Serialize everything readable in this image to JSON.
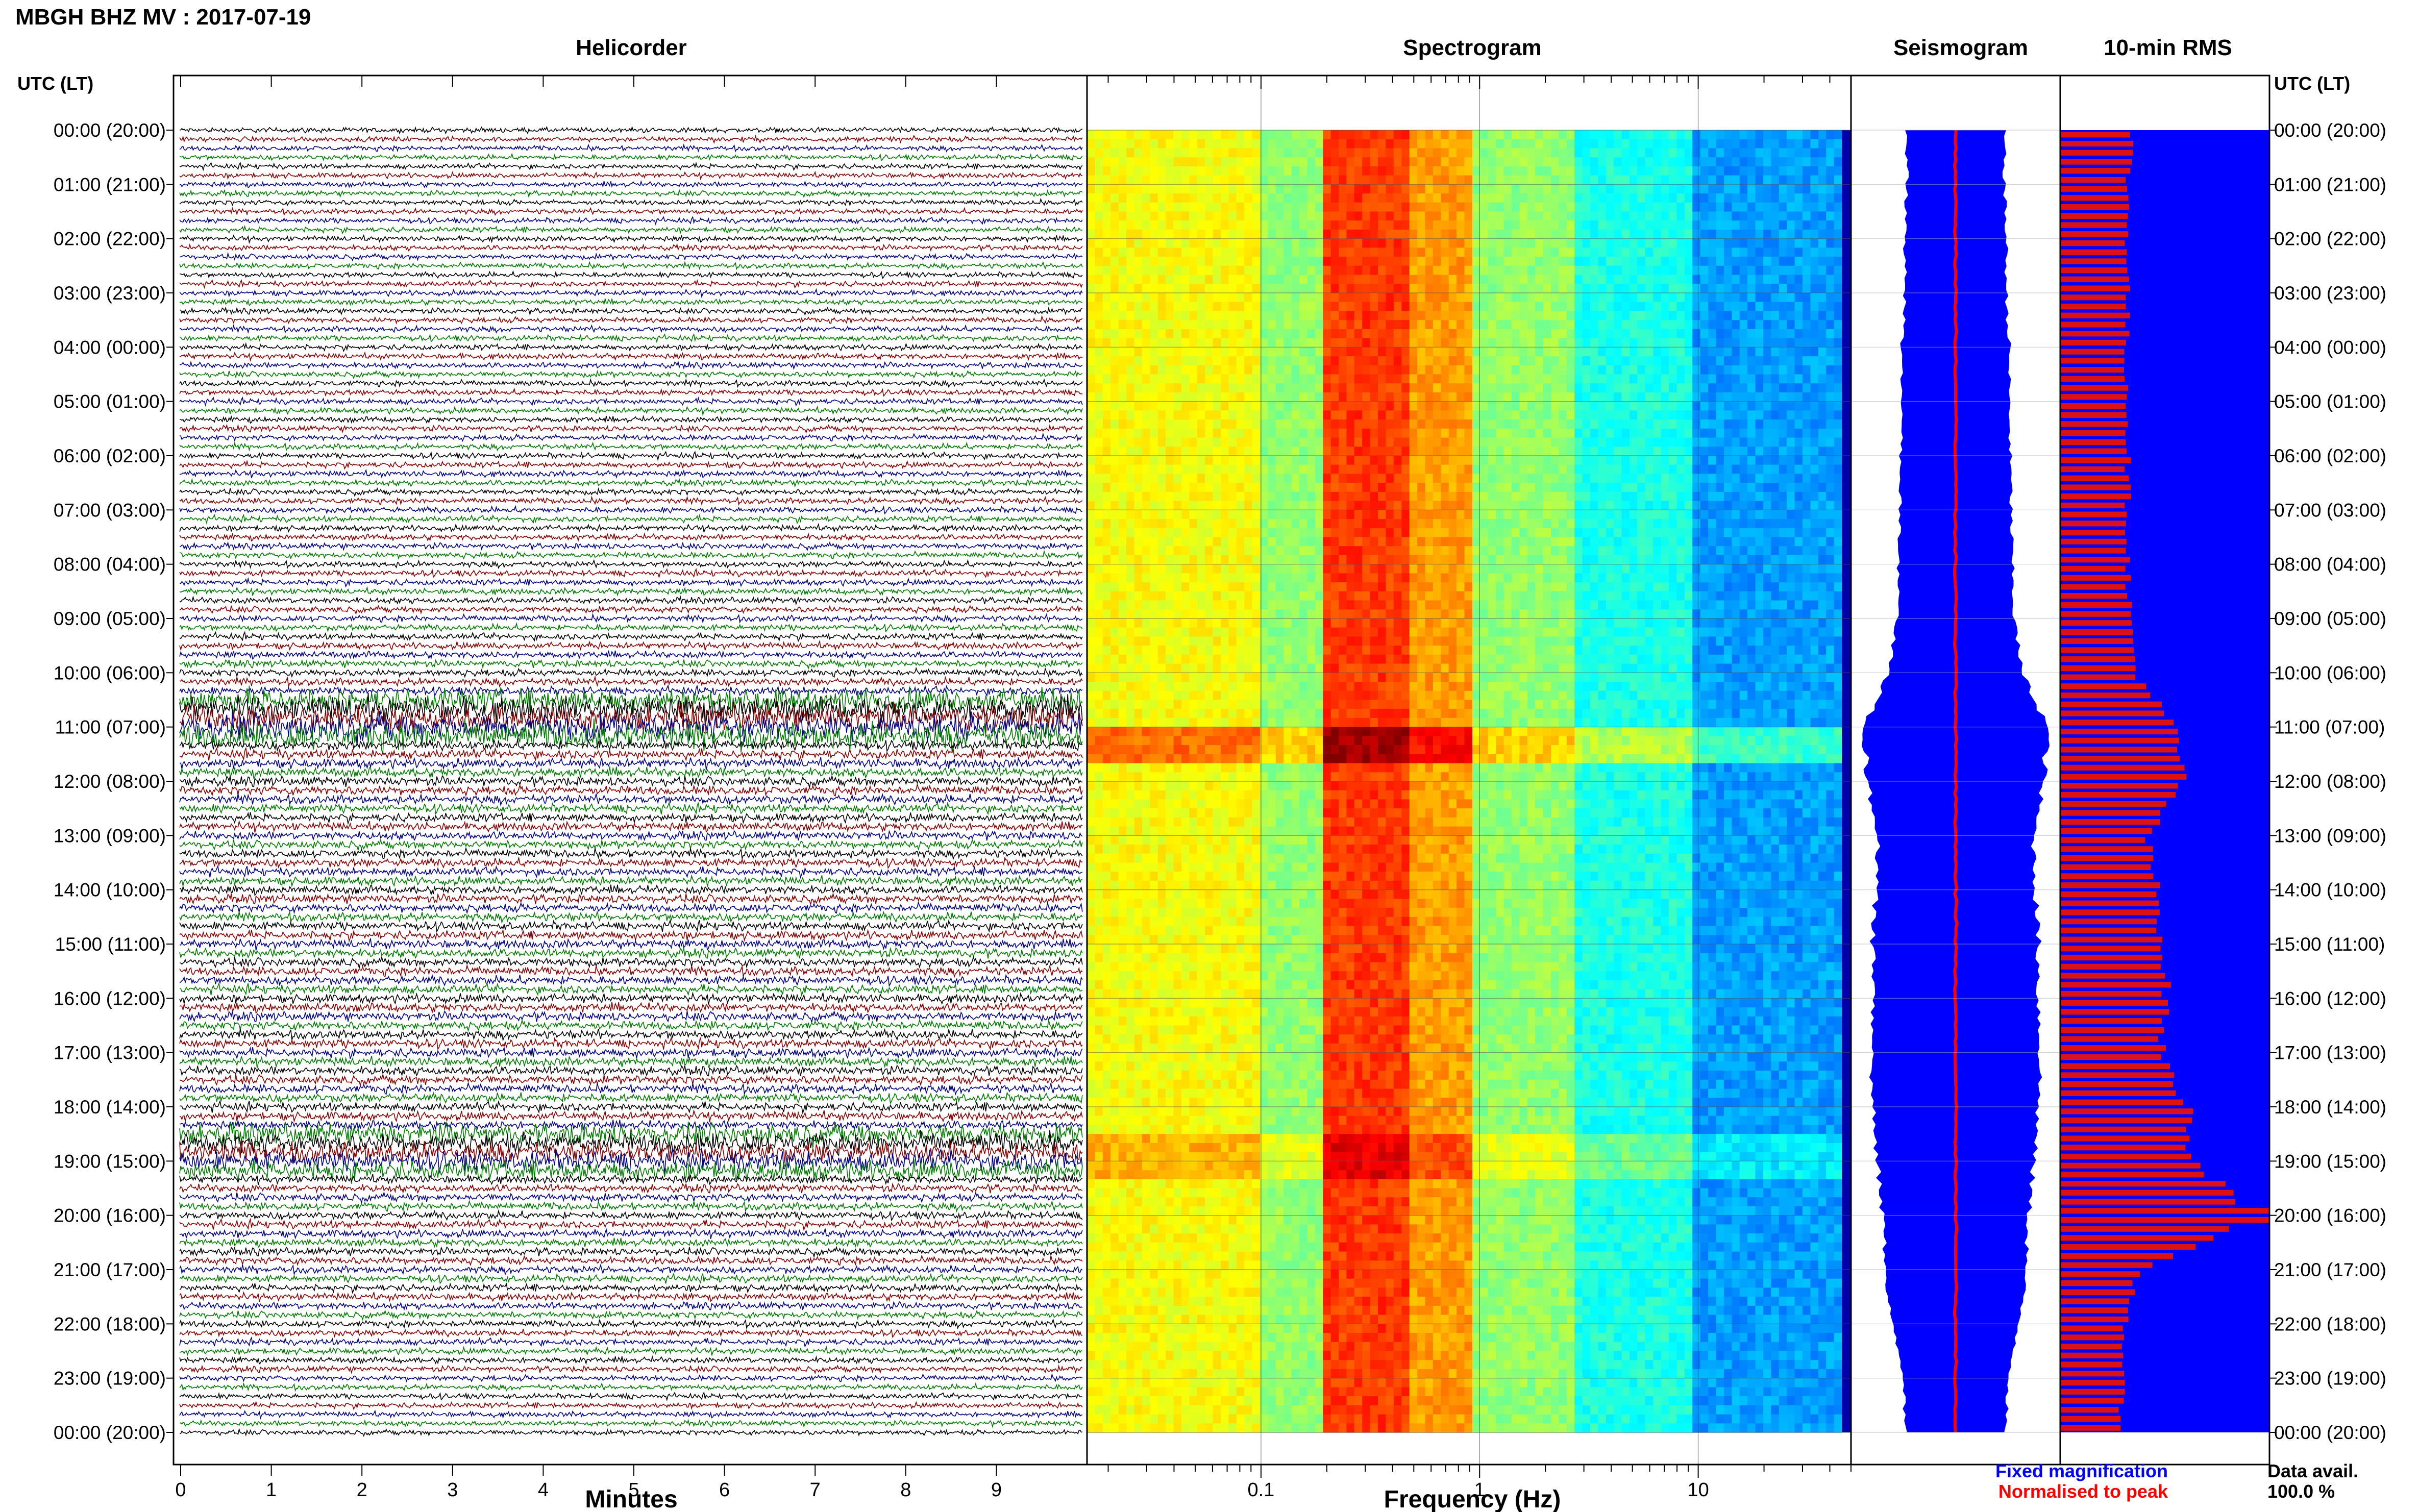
{
  "header": {
    "title": "MBGH BHZ MV : 2017-07-19",
    "utc_label_left": "UTC (LT)",
    "utc_label_right": "UTC (LT)"
  },
  "panels": {
    "helicorder": {
      "title": "Helicorder",
      "xlabel": "Minutes"
    },
    "spectrogram": {
      "title": "Spectrogram",
      "xlabel": "Frequency (Hz)"
    },
    "seismogram": {
      "title": "Seismogram"
    },
    "rms": {
      "title": "10-min RMS"
    }
  },
  "legend": {
    "fixed": "Fixed magnification",
    "normalised": "Normalised to peak",
    "data_avail_label": "Data avail.",
    "data_avail_value": "100.0 %"
  },
  "colors": {
    "trace_black": "#000000",
    "trace_red": "#8b0000",
    "trace_blue": "#00008b",
    "trace_green": "#007d00",
    "seis_blue": "#0000ff",
    "seis_red": "#ff0000",
    "rms_red": "#dd1111",
    "rms_bg": "#0000ff"
  },
  "chart_data": [
    {
      "type": "line",
      "title": "Helicorder",
      "xlabel": "Minutes",
      "x_ticks": [
        0,
        1,
        2,
        3,
        4,
        5,
        6,
        7,
        8,
        9
      ],
      "xlim": [
        0,
        10
      ],
      "rows_per_hour": 6,
      "hour_labels": [
        "00:00 (20:00)",
        "01:00 (21:00)",
        "02:00 (22:00)",
        "03:00 (23:00)",
        "04:00 (00:00)",
        "05:00 (01:00)",
        "06:00 (02:00)",
        "07:00 (03:00)",
        "08:00 (04:00)",
        "09:00 (05:00)",
        "10:00 (06:00)",
        "11:00 (07:00)",
        "12:00 (08:00)",
        "13:00 (09:00)",
        "14:00 (10:00)",
        "15:00 (11:00)",
        "16:00 (12:00)",
        "17:00 (13:00)",
        "18:00 (14:00)",
        "19:00 (15:00)",
        "20:00 (16:00)",
        "21:00 (17:00)",
        "22:00 (18:00)",
        "23:00 (19:00)",
        "00:00 (20:00)"
      ],
      "row_colors": [
        "black",
        "red",
        "blue",
        "green"
      ]
    },
    {
      "type": "heatmap",
      "title": "Spectrogram",
      "xlabel": "Frequency (Hz)",
      "x_scale": "log",
      "xlim": [
        0.016,
        50
      ],
      "x_ticks": [
        0.1,
        1,
        10
      ],
      "peak_band_hz": [
        0.2,
        0.45
      ]
    },
    {
      "type": "line",
      "title": "Seismogram",
      "relative_amplitude_by_hour": [
        0.5,
        0.5,
        0.52,
        0.52,
        0.55,
        0.55,
        0.56,
        0.57,
        0.58,
        0.6,
        0.68,
        0.95,
        0.9,
        0.8,
        0.82,
        0.85,
        0.85,
        0.87,
        0.85,
        0.8,
        0.75,
        0.72,
        0.65,
        0.55,
        0.5
      ]
    },
    {
      "type": "bar",
      "title": "10-min RMS",
      "relative_rms_by_hour": [
        0.35,
        0.33,
        0.33,
        0.33,
        0.32,
        0.33,
        0.33,
        0.33,
        0.33,
        0.34,
        0.37,
        0.55,
        0.6,
        0.42,
        0.47,
        0.5,
        0.52,
        0.49,
        0.62,
        0.65,
        0.98,
        0.38,
        0.32,
        0.3,
        0.3
      ]
    }
  ]
}
